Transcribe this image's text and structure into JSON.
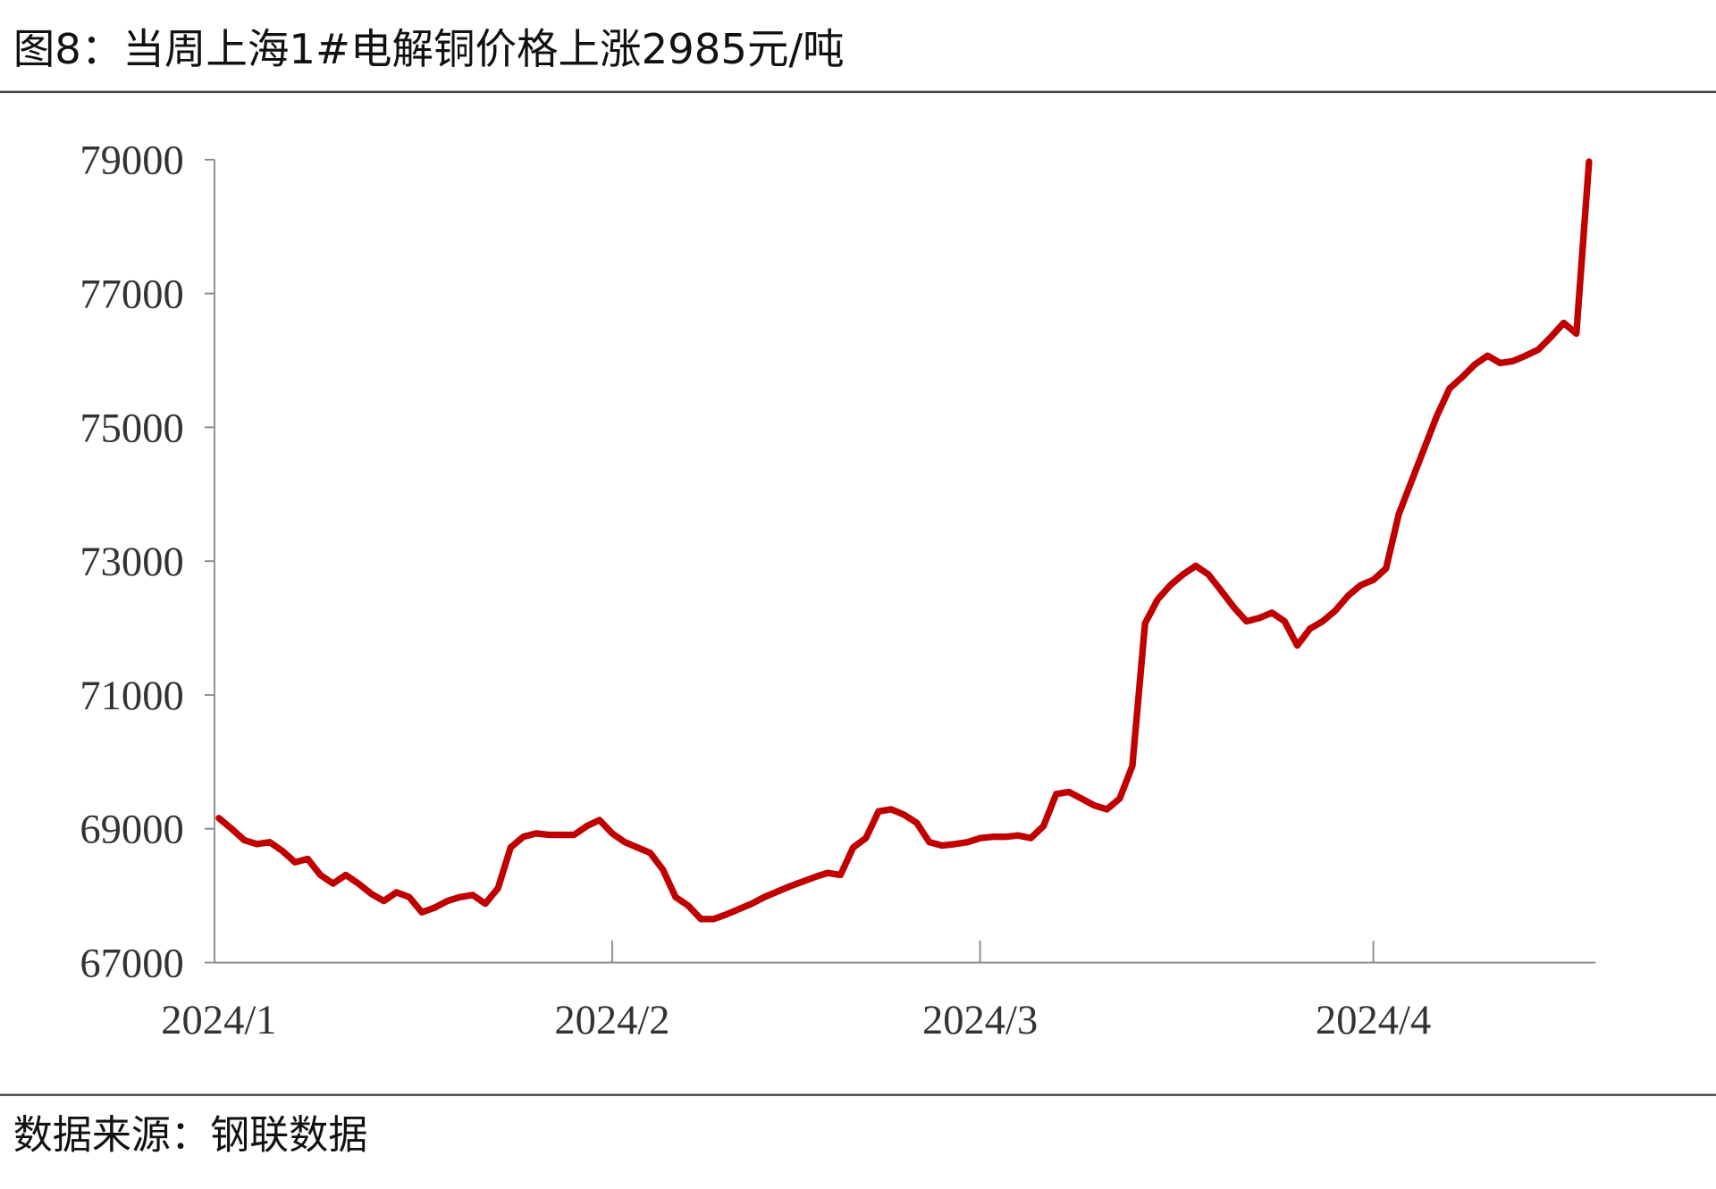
{
  "chart_data": {
    "type": "line",
    "title": "图8：当周上海1#电解铜价格上涨2985元/吨",
    "source": "数据来源：钢联数据",
    "categories": [
      "2024/1",
      null,
      null,
      null,
      null,
      null,
      null,
      null,
      null,
      null,
      null,
      null,
      null,
      null,
      null,
      null,
      null,
      null,
      null,
      null,
      null,
      null,
      null,
      null,
      null,
      null,
      null,
      null,
      null,
      null,
      null,
      "2024/2",
      null,
      null,
      null,
      null,
      null,
      null,
      null,
      null,
      null,
      null,
      null,
      null,
      null,
      null,
      null,
      null,
      null,
      null,
      null,
      null,
      null,
      null,
      null,
      null,
      null,
      null,
      null,
      null,
      "2024/3",
      null,
      null,
      null,
      null,
      null,
      null,
      null,
      null,
      null,
      null,
      null,
      null,
      null,
      null,
      null,
      null,
      null,
      null,
      null,
      null,
      null,
      null,
      null,
      null,
      null,
      null,
      null,
      null,
      null,
      null,
      "2024/4",
      null,
      null,
      null,
      null,
      null,
      null,
      null,
      null,
      null,
      null,
      null,
      null,
      null,
      null,
      null,
      null,
      null
    ],
    "series": [
      {
        "color": "#c00000",
        "values": [
          69160,
          69000,
          68830,
          68770,
          68800,
          68670,
          68500,
          68550,
          68310,
          68180,
          68310,
          68180,
          68030,
          67920,
          68050,
          67980,
          67750,
          67820,
          67920,
          67980,
          68010,
          67880,
          68110,
          68720,
          68880,
          68930,
          68910,
          68910,
          68910,
          69040,
          69130,
          68930,
          68800,
          68720,
          68640,
          68390,
          67980,
          67850,
          67650,
          67650,
          67720,
          67800,
          67880,
          67980,
          68060,
          68140,
          68210,
          68280,
          68340,
          68310,
          68720,
          68860,
          69260,
          69290,
          69210,
          69090,
          68800,
          68750,
          68770,
          68800,
          68860,
          68880,
          68880,
          68900,
          68860,
          69040,
          69520,
          69550,
          69450,
          69350,
          69290,
          69450,
          69940,
          72070,
          72430,
          72640,
          72800,
          72930,
          72800,
          72560,
          72310,
          72100,
          72150,
          72230,
          72100,
          71740,
          71990,
          72100,
          72260,
          72480,
          72640,
          72720,
          72890,
          73700,
          74190,
          74680,
          75170,
          75580,
          75750,
          75940,
          76070,
          75960,
          75990,
          76070,
          76160,
          76350,
          76560,
          76400,
          78970
        ]
      }
    ],
    "ylim": [
      67000,
      79000
    ],
    "yticks": [
      67000,
      69000,
      71000,
      73000,
      75000,
      77000,
      79000
    ]
  }
}
